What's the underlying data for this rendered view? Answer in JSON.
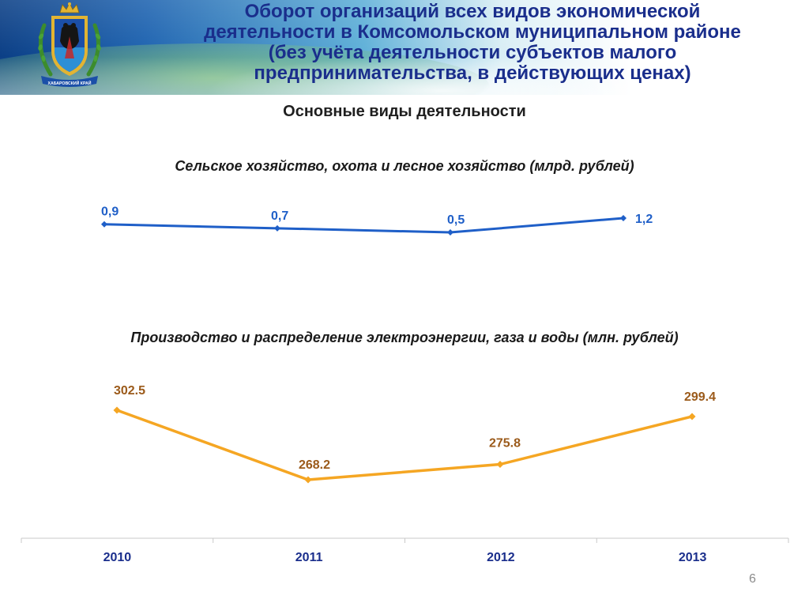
{
  "header": {
    "title_lines": [
      "Оборот организаций всех видов экономической",
      "деятельности в Комсомольском муниципальном районе",
      "(без учёта деятельности субъектов малого",
      "предпринимательства, в действующих ценах)"
    ],
    "emblem_text": "ХАБАРОВСКИЙ КРАЙ"
  },
  "subheading": "Основные виды деятельности",
  "chart_data": [
    {
      "type": "line",
      "title": "Сельское хозяйство, охота и лесное хозяйство (млрд. рублей)",
      "categories": [
        "2010",
        "2011",
        "2012",
        "2013"
      ],
      "values": [
        0.9,
        0.7,
        0.5,
        1.2
      ],
      "data_labels": [
        "0,9",
        "0,7",
        "0,5",
        "1,2"
      ],
      "color": "#1f5fc8",
      "label_color": "#1f5fc8"
    },
    {
      "type": "line",
      "title": "Производство и распределение электроэнергии, газа и воды (млн. рублей)",
      "categories": [
        "2010",
        "2011",
        "2012",
        "2013"
      ],
      "values": [
        302.5,
        268.2,
        275.8,
        299.4
      ],
      "data_labels": [
        "302.5",
        "268.2",
        "275.8",
        "299.4"
      ],
      "color": "#f5a623",
      "label_color": "#9b5a1a"
    }
  ],
  "x_axis": {
    "categories": [
      "2010",
      "2011",
      "2012",
      "2013"
    ],
    "label_color": "#1a2e8c"
  },
  "page_number": "6"
}
